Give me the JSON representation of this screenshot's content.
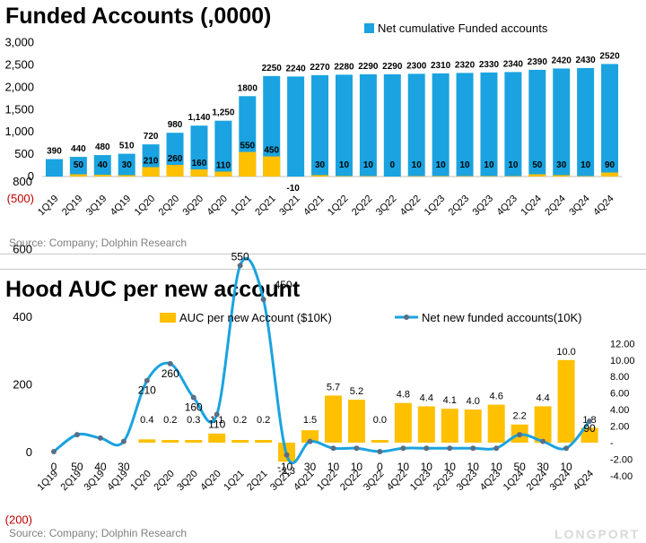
{
  "panel1": {
    "title": "Funded Accounts  (,0000)",
    "source": "Source: Company; Dolphin Research",
    "chart_data": {
      "type": "bar",
      "categories": [
        "1Q19",
        "2Q19",
        "3Q19",
        "4Q19",
        "1Q20",
        "2Q20",
        "3Q20",
        "4Q20",
        "1Q21",
        "2Q21",
        "3Q21",
        "4Q21",
        "1Q22",
        "2Q22",
        "3Q22",
        "4Q22",
        "1Q23",
        "2Q23",
        "3Q23",
        "4Q23",
        "1Q24",
        "2Q24",
        "3Q24",
        "4Q24"
      ],
      "series": [
        {
          "name": "Net cumulative Funded accounts",
          "color": "#1aa3e0",
          "values": [
            390,
            440,
            480,
            510,
            720,
            980,
            1140,
            1250,
            1800,
            2250,
            2240,
            2270,
            2280,
            2290,
            2290,
            2300,
            2310,
            2320,
            2330,
            2340,
            2390,
            2420,
            2430,
            2520
          ],
          "labels": [
            "390",
            "440",
            "480",
            "510",
            "720",
            "980",
            "1,140",
            "1,250",
            "1800",
            "2250",
            "2240",
            "2270",
            "2280",
            "2290",
            "2290",
            "2300",
            "2310",
            "2320",
            "2330",
            "2340",
            "2390",
            "2420",
            "2430",
            "2520"
          ]
        },
        {
          "name": "",
          "color": "#ffc000",
          "values": [
            0,
            50,
            40,
            30,
            210,
            260,
            160,
            110,
            550,
            450,
            -10,
            30,
            10,
            10,
            0,
            10,
            10,
            10,
            10,
            10,
            50,
            30,
            10,
            90
          ],
          "labels": [
            "",
            "50",
            "40",
            "30",
            "210",
            "260",
            "160",
            "110",
            "550",
            "450",
            "-10",
            "30",
            "10",
            "10",
            "0",
            "10",
            "10",
            "10",
            "10",
            "10",
            "50",
            "30",
            "10",
            "90"
          ]
        }
      ],
      "yticks": [
        "3,000",
        "2,500",
        "2,000",
        "1,500",
        "1,000",
        "500",
        "0",
        "(500)"
      ],
      "ylim": [
        -500,
        3000
      ],
      "legend_position": "top-right"
    }
  },
  "panel2": {
    "title": "Hood AUC per new account",
    "source": "Source: Company; Dolphin Research",
    "watermark": "LONGPORT",
    "chart_data": {
      "type": "bar",
      "categories": [
        "1Q19",
        "2Q19",
        "3Q19",
        "4Q19",
        "1Q20",
        "2Q20",
        "3Q20",
        "4Q20",
        "1Q21",
        "2Q21",
        "3Q21",
        "4Q21",
        "1Q22",
        "2Q22",
        "3Q22",
        "4Q22",
        "1Q23",
        "2Q23",
        "3Q23",
        "4Q23",
        "1Q24",
        "2Q24",
        "3Q24",
        "4Q24"
      ],
      "bars": {
        "name": "AUC per new Account  ($10K)",
        "color": "#ffc000",
        "values": [
          null,
          null,
          null,
          null,
          0.4,
          0.2,
          0.3,
          1.1,
          0.2,
          0.2,
          -2.3,
          1.5,
          5.7,
          5.2,
          0.0,
          4.8,
          4.4,
          4.1,
          4.0,
          4.6,
          2.2,
          4.4,
          10.0,
          1.8
        ],
        "labels": [
          "",
          "",
          "",
          "",
          "0.4",
          "0.2",
          "0.3",
          "1.1",
          "0.2",
          "0.2",
          "-2.3",
          "1.5",
          "5.7",
          "5.2",
          "0.0",
          "4.8",
          "4.4",
          "4.1",
          "4.0",
          "4.6",
          "2.2",
          "4.4",
          "10.0",
          "1.8"
        ]
      },
      "line": {
        "name": "Net new funded accounts(10K)",
        "color": "#1aa3e0",
        "values": [
          0,
          50,
          40,
          30,
          210,
          260,
          160,
          110,
          550,
          450,
          -10,
          30,
          10,
          10,
          0,
          10,
          10,
          10,
          10,
          10,
          50,
          30,
          10,
          90
        ],
        "labels": [
          "0",
          "50",
          "40",
          "30",
          "210",
          "260",
          "160",
          "110",
          "550",
          "450",
          "-10",
          "30",
          "10",
          "10",
          "0",
          "10",
          "10",
          "10",
          "10",
          "10",
          "50",
          "30",
          "10",
          "90"
        ]
      },
      "y_left_ticks": [
        "800",
        "600",
        "400",
        "200",
        "0",
        "(200)"
      ],
      "y_left_lim": [
        -200,
        800
      ],
      "y_right_ticks": [
        "12.00",
        "10.00",
        "8.00",
        "6.00",
        "4.00",
        "2.00",
        "-",
        "-2.00",
        "-4.00"
      ],
      "y_right_lim": [
        -4,
        12
      ],
      "legend_position": "top"
    }
  }
}
